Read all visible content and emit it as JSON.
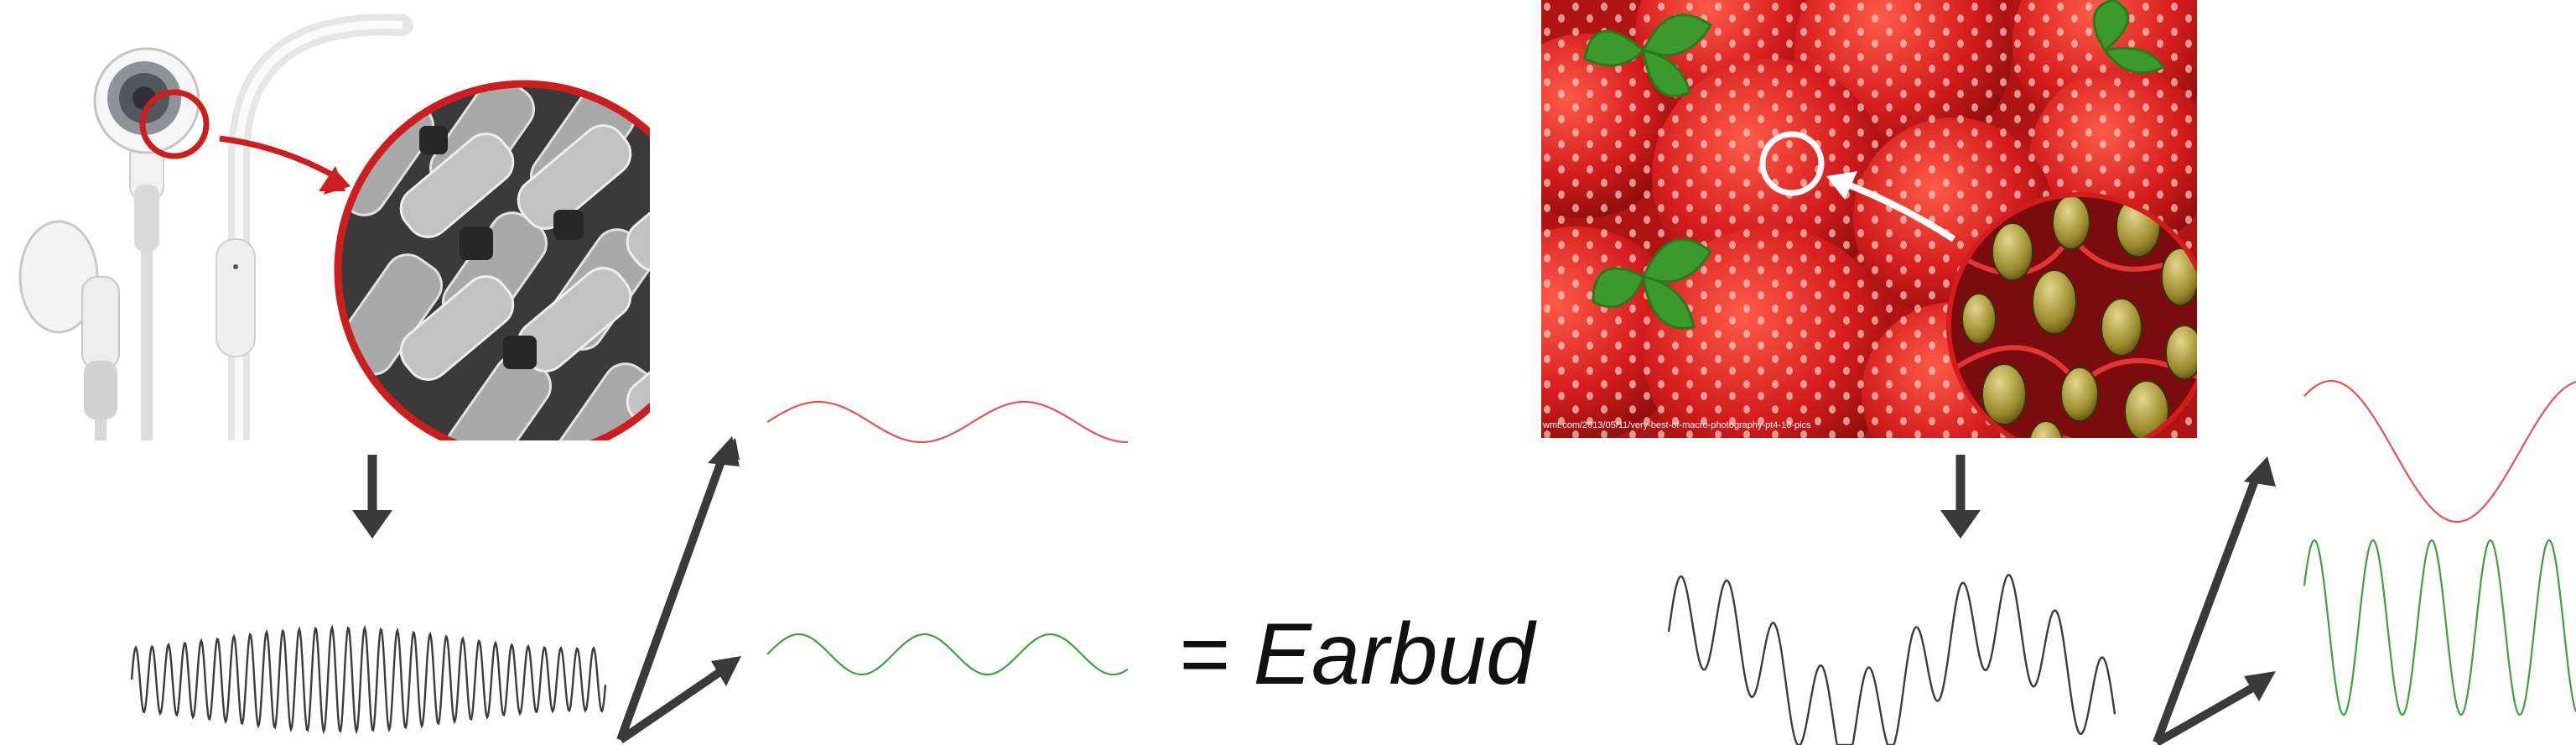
{
  "equation": {
    "text": "= Earbud"
  },
  "strawberry_photo": {
    "credit": "wmt.com/2013/05/11/very-best-of-macro-photography-pt4-10-pics"
  },
  "colors": {
    "highlight_red": "#cc1e1e",
    "signal_gray": "#3c3c3c",
    "arrow_gray": "#3a3a3a",
    "component_red": "#e05555",
    "component_green": "#3fa040",
    "strawberry_red": "#d42020",
    "leaf_green": "#3a9a2c"
  },
  "icons": {
    "earbud": "earbud-icon",
    "mesh": "woven-mesh-microscope-icon",
    "strawberry": "strawberry-macro-photo",
    "seeds": "strawberry-seed-microscope-icon"
  }
}
